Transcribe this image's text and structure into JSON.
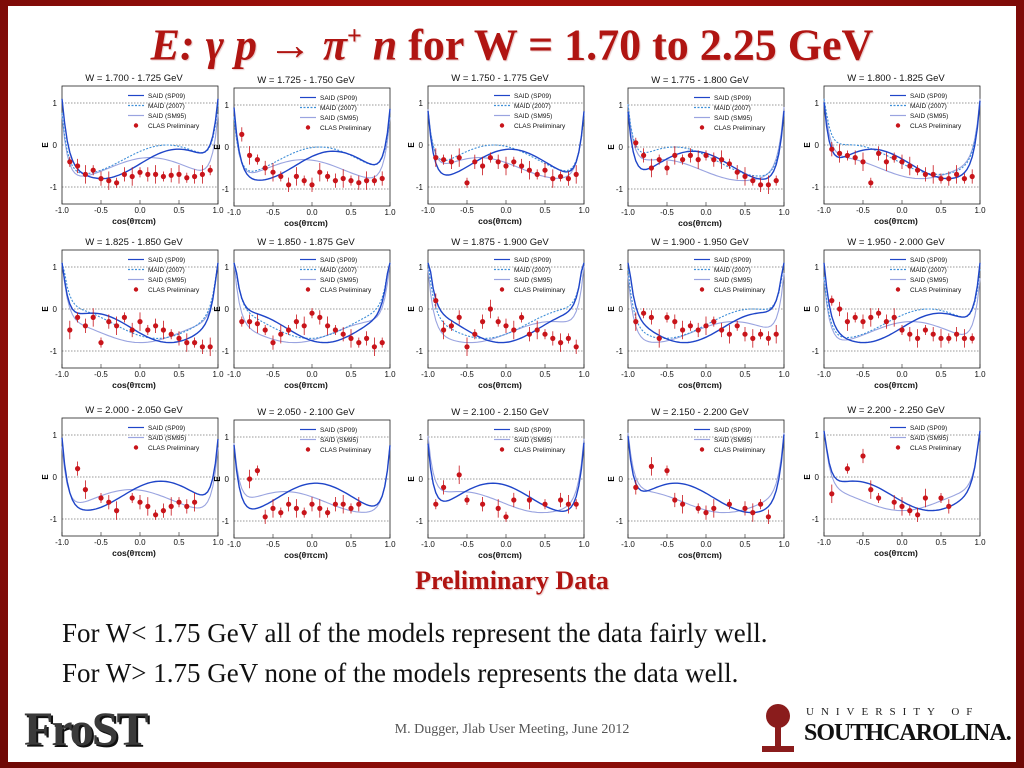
{
  "slide": {
    "title_E": "E:",
    "title_reaction": "γ p → π",
    "title_plus": "+",
    "title_n": "n",
    "title_rest": "for W = 1.70 to 2.25 GeV",
    "preliminary": "Preliminary Data",
    "line1": "For W< 1.75 GeV all of the models represent the data fairly well.",
    "line2": "For W> 1.75 GeV none of the models represents the data well.",
    "footer": "M. Dugger, Jlab User Meeting, June 2012",
    "logo_frost": "FroST",
    "logo_univ": "UNIVERSITY OF",
    "logo_sc": "SOUTHCAROLINA."
  },
  "colors": {
    "title": "#b01512",
    "said_sp09": "#1f45c8",
    "maid_2007": "#3f8fd8",
    "said_sm95": "#9aa4e0",
    "clas": "#c8141a"
  },
  "axis": {
    "ylabel": "E",
    "xlabel": "cos(θ",
    "xlabel_sup": "cm",
    "xlabel_sub": "π",
    "xlabel_close": ")",
    "xticks": [
      "-1.0",
      "-0.5",
      "0.0",
      "0.5",
      "1.0"
    ],
    "yticks": [
      "1",
      "0",
      "-1"
    ]
  },
  "chart_data": [
    {
      "type": "scatter",
      "title": "W = 1.700 - 1.725 GeV",
      "legend": [
        "SAID (SP09)",
        "MAID (2007)",
        "SAID (SM95)",
        "CLAS Preliminary"
      ],
      "x": [
        -0.9,
        -0.8,
        -0.7,
        -0.6,
        -0.5,
        -0.4,
        -0.3,
        -0.2,
        -0.1,
        0.0,
        0.1,
        0.2,
        0.3,
        0.4,
        0.5,
        0.6,
        0.7,
        0.8,
        0.9
      ],
      "y": [
        -0.4,
        -0.5,
        -0.7,
        -0.6,
        -0.8,
        -0.85,
        -0.9,
        -0.7,
        -0.75,
        -0.65,
        -0.7,
        -0.7,
        -0.75,
        -0.72,
        -0.7,
        -0.78,
        -0.75,
        -0.7,
        -0.6
      ]
    },
    {
      "type": "scatter",
      "title": "W = 1.725 - 1.750 GeV",
      "legend": [
        "SAID (SP09)",
        "MAID (2007)",
        "SAID (SM95)",
        "CLAS Preliminary"
      ],
      "x": [
        -0.9,
        -0.8,
        -0.7,
        -0.6,
        -0.5,
        -0.4,
        -0.3,
        -0.2,
        -0.1,
        0.0,
        0.1,
        0.2,
        0.3,
        0.4,
        0.5,
        0.6,
        0.7,
        0.8,
        0.9
      ],
      "y": [
        0.3,
        -0.2,
        -0.3,
        -0.5,
        -0.6,
        -0.7,
        -0.9,
        -0.7,
        -0.8,
        -0.9,
        -0.6,
        -0.7,
        -0.8,
        -0.75,
        -0.8,
        -0.85,
        -0.8,
        -0.8,
        -0.75
      ]
    },
    {
      "type": "scatter",
      "title": "W = 1.750 - 1.775 GeV",
      "legend": [
        "SAID (SP09)",
        "MAID (2007)",
        "SAID (SM95)",
        "CLAS Preliminary"
      ],
      "x": [
        -0.9,
        -0.8,
        -0.7,
        -0.6,
        -0.5,
        -0.4,
        -0.3,
        -0.2,
        -0.1,
        0.0,
        0.1,
        0.2,
        0.3,
        0.4,
        0.5,
        0.6,
        0.7,
        0.8,
        0.9
      ],
      "y": [
        -0.3,
        -0.35,
        -0.4,
        -0.3,
        -0.9,
        -0.4,
        -0.5,
        -0.3,
        -0.4,
        -0.5,
        -0.4,
        -0.5,
        -0.6,
        -0.7,
        -0.6,
        -0.8,
        -0.75,
        -0.8,
        -0.7
      ]
    },
    {
      "type": "scatter",
      "title": "W = 1.775 - 1.800 GeV",
      "legend": [
        "SAID (SP09)",
        "MAID (2007)",
        "SAID (SM95)",
        "CLAS Preliminary"
      ],
      "x": [
        -0.9,
        -0.8,
        -0.7,
        -0.6,
        -0.5,
        -0.4,
        -0.3,
        -0.2,
        -0.1,
        0.0,
        0.1,
        0.2,
        0.3,
        0.4,
        0.5,
        0.6,
        0.7,
        0.8,
        0.9
      ],
      "y": [
        0.1,
        -0.2,
        -0.5,
        -0.3,
        -0.5,
        -0.2,
        -0.3,
        -0.2,
        -0.3,
        -0.2,
        -0.3,
        -0.3,
        -0.4,
        -0.6,
        -0.7,
        -0.8,
        -0.9,
        -0.9,
        -0.8
      ]
    },
    {
      "type": "scatter",
      "title": "W = 1.800 - 1.825 GeV",
      "legend": [
        "SAID (SP09)",
        "MAID (2007)",
        "SAID (SM95)",
        "CLAS Preliminary"
      ],
      "x": [
        -0.9,
        -0.8,
        -0.7,
        -0.6,
        -0.5,
        -0.4,
        -0.3,
        -0.2,
        -0.1,
        0.0,
        0.1,
        0.2,
        0.3,
        0.4,
        0.5,
        0.6,
        0.7,
        0.8,
        0.9
      ],
      "y": [
        -0.1,
        -0.2,
        -0.25,
        -0.3,
        -0.4,
        -0.9,
        -0.2,
        -0.4,
        -0.3,
        -0.4,
        -0.5,
        -0.6,
        -0.7,
        -0.7,
        -0.8,
        -0.8,
        -0.7,
        -0.8,
        -0.75
      ]
    },
    {
      "type": "scatter",
      "title": "W = 1.825 - 1.850 GeV",
      "legend": [
        "SAID (SP09)",
        "MAID (2007)",
        "SAID (SM95)",
        "CLAS Preliminary"
      ],
      "x": [
        -0.9,
        -0.8,
        -0.7,
        -0.6,
        -0.5,
        -0.4,
        -0.3,
        -0.2,
        -0.1,
        0.0,
        0.1,
        0.2,
        0.3,
        0.4,
        0.5,
        0.6,
        0.7,
        0.8,
        0.9
      ],
      "y": [
        -0.5,
        -0.2,
        -0.4,
        -0.2,
        -0.8,
        -0.3,
        -0.4,
        -0.2,
        -0.5,
        -0.3,
        -0.5,
        -0.4,
        -0.5,
        -0.6,
        -0.7,
        -0.8,
        -0.8,
        -0.9,
        -0.9
      ]
    },
    {
      "type": "scatter",
      "title": "W = 1.850 - 1.875 GeV",
      "legend": [
        "SAID (SP09)",
        "MAID (2007)",
        "SAID (SM95)",
        "CLAS Preliminary"
      ],
      "x": [
        -0.9,
        -0.8,
        -0.7,
        -0.6,
        -0.5,
        -0.4,
        -0.3,
        -0.2,
        -0.1,
        0.0,
        0.1,
        0.2,
        0.3,
        0.4,
        0.5,
        0.6,
        0.7,
        0.8,
        0.9
      ],
      "y": [
        -0.3,
        -0.3,
        -0.35,
        -0.5,
        -0.8,
        -0.6,
        -0.5,
        -0.3,
        -0.4,
        -0.1,
        -0.2,
        -0.4,
        -0.5,
        -0.6,
        -0.7,
        -0.8,
        -0.7,
        -0.9,
        -0.8
      ]
    },
    {
      "type": "scatter",
      "title": "W = 1.875 - 1.900 GeV",
      "legend": [
        "SAID (SP09)",
        "MAID (2007)",
        "SAID (SM95)",
        "CLAS Preliminary"
      ],
      "x": [
        -0.9,
        -0.8,
        -0.7,
        -0.6,
        -0.5,
        -0.4,
        -0.3,
        -0.2,
        -0.1,
        0.0,
        0.1,
        0.2,
        0.3,
        0.4,
        0.5,
        0.6,
        0.7,
        0.8,
        0.9
      ],
      "y": [
        0.2,
        -0.5,
        -0.4,
        -0.2,
        -0.9,
        -0.6,
        -0.3,
        0.0,
        -0.3,
        -0.4,
        -0.5,
        -0.2,
        -0.6,
        -0.5,
        -0.6,
        -0.7,
        -0.8,
        -0.7,
        -0.9
      ]
    },
    {
      "type": "scatter",
      "title": "W = 1.900 - 1.950 GeV",
      "legend": [
        "SAID (SP09)",
        "MAID (2007)",
        "SAID (SM95)",
        "CLAS Preliminary"
      ],
      "x": [
        -0.9,
        -0.8,
        -0.7,
        -0.6,
        -0.5,
        -0.4,
        -0.3,
        -0.2,
        -0.1,
        0.0,
        0.1,
        0.2,
        0.3,
        0.4,
        0.5,
        0.6,
        0.7,
        0.8,
        0.9
      ],
      "y": [
        -0.3,
        -0.1,
        -0.2,
        -0.7,
        -0.2,
        -0.3,
        -0.5,
        -0.4,
        -0.5,
        -0.4,
        -0.3,
        -0.5,
        -0.6,
        -0.4,
        -0.6,
        -0.7,
        -0.6,
        -0.7,
        -0.6
      ]
    },
    {
      "type": "scatter",
      "title": "W = 1.950 - 2.000 GeV",
      "legend": [
        "SAID (SP09)",
        "MAID (2007)",
        "SAID (SM95)",
        "CLAS Preliminary"
      ],
      "x": [
        -0.9,
        -0.8,
        -0.7,
        -0.6,
        -0.5,
        -0.4,
        -0.3,
        -0.2,
        -0.1,
        0.0,
        0.1,
        0.2,
        0.3,
        0.4,
        0.5,
        0.6,
        0.7,
        0.8,
        0.9
      ],
      "y": [
        0.2,
        0.0,
        -0.3,
        -0.2,
        -0.3,
        -0.2,
        -0.1,
        -0.3,
        -0.2,
        -0.5,
        -0.6,
        -0.7,
        -0.5,
        -0.6,
        -0.7,
        -0.7,
        -0.6,
        -0.7,
        -0.7
      ]
    },
    {
      "type": "scatter",
      "title": "W = 2.000 - 2.050 GeV",
      "legend": [
        "SAID (SP09)",
        "SAID (SM95)",
        "CLAS Preliminary"
      ],
      "x": [
        -0.8,
        -0.7,
        -0.5,
        -0.4,
        -0.3,
        -0.1,
        0.0,
        0.1,
        0.2,
        0.3,
        0.4,
        0.5,
        0.6,
        0.7
      ],
      "y": [
        0.2,
        -0.3,
        -0.5,
        -0.6,
        -0.8,
        -0.5,
        -0.6,
        -0.7,
        -0.9,
        -0.8,
        -0.7,
        -0.6,
        -0.7,
        -0.6
      ]
    },
    {
      "type": "scatter",
      "title": "W = 2.050 - 2.100 GeV",
      "legend": [
        "SAID (SP09)",
        "SAID (SM95)",
        "CLAS Preliminary"
      ],
      "x": [
        -0.8,
        -0.7,
        -0.6,
        -0.5,
        -0.4,
        -0.3,
        -0.2,
        -0.1,
        0.0,
        0.1,
        0.2,
        0.3,
        0.4,
        0.5,
        0.6
      ],
      "y": [
        0.0,
        0.2,
        -0.9,
        -0.7,
        -0.8,
        -0.6,
        -0.7,
        -0.8,
        -0.6,
        -0.7,
        -0.8,
        -0.6,
        -0.6,
        -0.7,
        -0.6
      ]
    },
    {
      "type": "scatter",
      "title": "W = 2.100 - 2.150 GeV",
      "legend": [
        "SAID (SP09)",
        "SAID (SM95)",
        "CLAS Preliminary"
      ],
      "x": [
        -0.9,
        -0.8,
        -0.6,
        -0.5,
        -0.3,
        -0.1,
        0.0,
        0.1,
        0.3,
        0.5,
        0.7,
        0.8,
        0.9
      ],
      "y": [
        -0.6,
        -0.2,
        0.1,
        -0.5,
        -0.6,
        -0.7,
        -0.9,
        -0.5,
        -0.5,
        -0.6,
        -0.5,
        -0.6,
        -0.6
      ]
    },
    {
      "type": "scatter",
      "title": "W = 2.150 - 2.200 GeV",
      "legend": [
        "SAID (SP09)",
        "SAID (SM95)",
        "CLAS Preliminary"
      ],
      "x": [
        -0.9,
        -0.7,
        -0.5,
        -0.4,
        -0.3,
        -0.1,
        0.0,
        0.1,
        0.3,
        0.5,
        0.6,
        0.7,
        0.8
      ],
      "y": [
        -0.2,
        0.3,
        0.2,
        -0.5,
        -0.6,
        -0.7,
        -0.8,
        -0.7,
        -0.6,
        -0.7,
        -0.8,
        -0.6,
        -0.9
      ]
    },
    {
      "type": "scatter",
      "title": "W = 2.200 - 2.250 GeV",
      "legend": [
        "SAID (SP09)",
        "SAID (SM95)",
        "CLAS Preliminary"
      ],
      "x": [
        -0.9,
        -0.7,
        -0.5,
        -0.4,
        -0.3,
        -0.1,
        0.0,
        0.1,
        0.2,
        0.3,
        0.5,
        0.6
      ],
      "y": [
        -0.4,
        0.2,
        0.5,
        -0.3,
        -0.5,
        -0.6,
        -0.7,
        -0.8,
        -0.9,
        -0.5,
        -0.5,
        -0.7
      ]
    }
  ]
}
